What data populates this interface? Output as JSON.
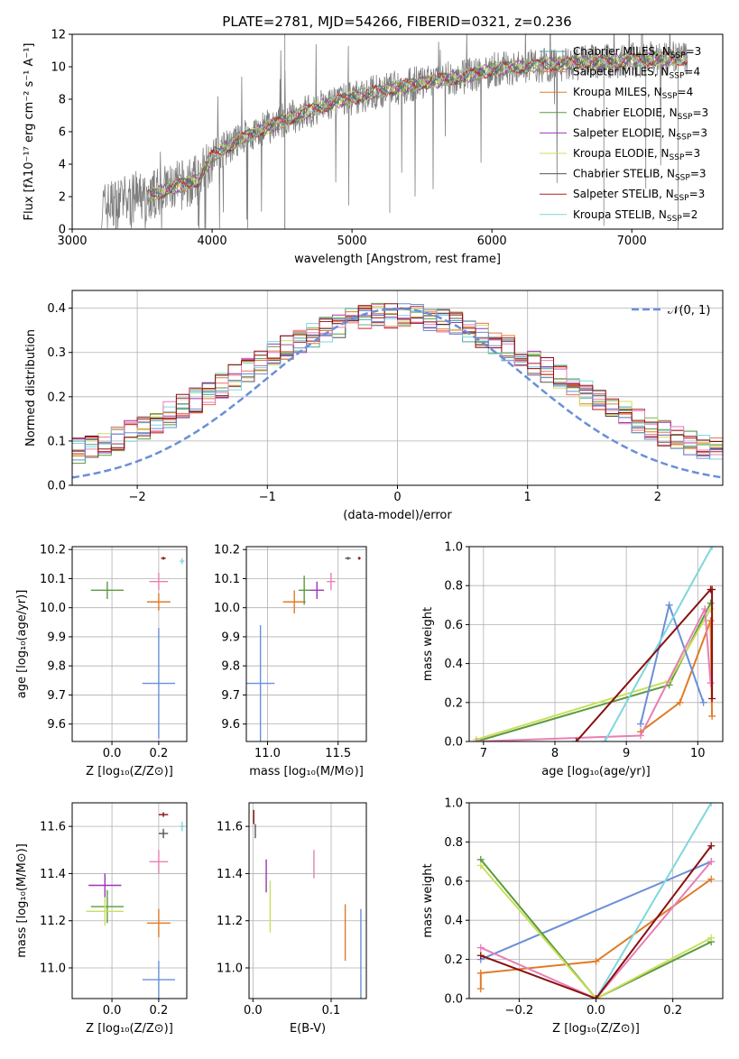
{
  "colors": {
    "chabrier_miles": "#4aa3a0",
    "salpeter_miles": "#e8735a",
    "kroupa_miles": "#e07b26",
    "chabrier_elodie": "#5a9a40",
    "salpeter_elodie": "#9b36b7",
    "kroupa_elodie": "#c9e05a",
    "chabrier_stelib": "#555555",
    "salpeter_stelib": "#b02020",
    "kroupa_stelib": "#7fd6de",
    "pink": "#e77fb5",
    "blue": "#6a8fd8",
    "darkred": "#8b0f0f",
    "spectrum": "#7f7f7f",
    "normal": "#6a8fd8"
  },
  "chart_data": [
    {
      "id": "spectrum",
      "type": "line",
      "title": "PLATE=2781, MJD=54266, FIBERID=0321, z=0.236",
      "xlabel": "wavelength [Angstrom, rest frame]",
      "ylabel": "Flux [fλ10⁻¹⁷ erg cm⁻² s⁻¹ A⁻¹]",
      "xlim": [
        3000,
        7650
      ],
      "ylim": [
        0,
        12
      ],
      "xticks": [
        3000,
        4000,
        5000,
        6000,
        7000
      ],
      "yticks": [
        0,
        2,
        4,
        6,
        8,
        10,
        12
      ],
      "grid": false,
      "legend_position": "top-right",
      "legend": [
        {
          "label": "Chabrier MILES, N",
          "sub": "SSP",
          "suffix": "=3"
        },
        {
          "label": "Salpeter MILES, N",
          "sub": "SSP",
          "suffix": "=4"
        },
        {
          "label": "Kroupa MILES, N",
          "sub": "SSP",
          "suffix": "=4"
        },
        {
          "label": "Chabrier ELODIE, N",
          "sub": "SSP",
          "suffix": "=3"
        },
        {
          "label": "Salpeter ELODIE, N",
          "sub": "SSP",
          "suffix": "=3"
        },
        {
          "label": "Kroupa ELODIE, N",
          "sub": "SSP",
          "suffix": "=3"
        },
        {
          "label": "Chabrier STELIB, N",
          "sub": "SSP",
          "suffix": "=3"
        },
        {
          "label": "Salpeter STELIB, N",
          "sub": "SSP",
          "suffix": "=3"
        },
        {
          "label": "Kroupa STELIB, N",
          "sub": "SSP",
          "suffix": "=2"
        }
      ],
      "continuum": [
        [
          3200,
          1.3
        ],
        [
          3300,
          1.6
        ],
        [
          3500,
          1.9
        ],
        [
          3700,
          2.5
        ],
        [
          3900,
          3.0
        ],
        [
          4000,
          4.5
        ],
        [
          4200,
          5.5
        ],
        [
          4400,
          6.3
        ],
        [
          4600,
          7.0
        ],
        [
          4800,
          7.6
        ],
        [
          5000,
          8.1
        ],
        [
          5200,
          8.5
        ],
        [
          5500,
          9.0
        ],
        [
          5800,
          9.4
        ],
        [
          6000,
          9.8
        ],
        [
          6200,
          10.0
        ],
        [
          6500,
          10.2
        ],
        [
          6800,
          10.3
        ],
        [
          7000,
          10.4
        ],
        [
          7200,
          10.5
        ],
        [
          7400,
          10.5
        ]
      ]
    },
    {
      "id": "residuals",
      "type": "histogram",
      "xlabel": "(data-model)/error",
      "ylabel": "Normed distribution",
      "xlim": [
        -2.5,
        2.5
      ],
      "ylim": [
        0,
        0.44
      ],
      "xticks": [
        -2,
        -1,
        0,
        1,
        2
      ],
      "yticks": [
        0.0,
        0.1,
        0.2,
        0.3,
        0.4
      ],
      "grid": true,
      "legend_position": "top-right",
      "legend": [
        {
          "label": "𝒩(0, 1)"
        }
      ]
    },
    {
      "id": "age_vs_Z",
      "type": "errorbar",
      "xlabel": "Z [log₁₀(Z/Z⊙)]",
      "ylabel": "age  [log₁₀(age/yr)]",
      "xlim": [
        -0.17,
        0.32
      ],
      "ylim": [
        9.54,
        10.21
      ],
      "xticks": [
        0.0,
        0.2
      ],
      "yticks": [
        9.6,
        9.7,
        9.8,
        9.9,
        10.0,
        10.1,
        10.2
      ],
      "grid": true,
      "points": [
        {
          "x": 0.2,
          "y": 9.74,
          "xerr": 0.07,
          "yerr": 0.19,
          "c": "blue"
        },
        {
          "x": 0.2,
          "y": 10.02,
          "xerr": 0.05,
          "yerr": 0.03,
          "c": "kroupa_miles"
        },
        {
          "x": -0.02,
          "y": 10.06,
          "xerr": 0.07,
          "yerr": 0.03,
          "c": "chabrier_elodie"
        },
        {
          "x": 0.2,
          "y": 10.09,
          "xerr": 0.04,
          "yerr": 0.03,
          "c": "pink"
        },
        {
          "x": 0.22,
          "y": 10.17,
          "xerr": 0.01,
          "yerr": 0.005,
          "c": "darkred"
        },
        {
          "x": 0.3,
          "y": 10.16,
          "xerr": 0.01,
          "yerr": 0.01,
          "c": "kroupa_stelib"
        }
      ]
    },
    {
      "id": "age_vs_mass",
      "type": "errorbar",
      "xlabel": "mass [log₁₀(M/M⊙)]",
      "ylabel": "",
      "xlim": [
        10.85,
        11.7
      ],
      "ylim": [
        9.54,
        10.21
      ],
      "xticks": [
        11.0,
        11.5
      ],
      "yticks": [
        9.6,
        9.7,
        9.8,
        9.9,
        10.0,
        10.1,
        10.2
      ],
      "grid": true,
      "points": [
        {
          "x": 10.95,
          "y": 9.74,
          "xerr": 0.1,
          "yerr": 0.2,
          "c": "blue"
        },
        {
          "x": 11.19,
          "y": 10.02,
          "xerr": 0.08,
          "yerr": 0.04,
          "c": "kroupa_miles"
        },
        {
          "x": 11.26,
          "y": 10.06,
          "xerr": 0.04,
          "yerr": 0.05,
          "c": "chabrier_elodie"
        },
        {
          "x": 11.35,
          "y": 10.06,
          "xerr": 0.05,
          "yerr": 0.03,
          "c": "salpeter_elodie"
        },
        {
          "x": 11.45,
          "y": 10.09,
          "xerr": 0.03,
          "yerr": 0.03,
          "c": "pink"
        },
        {
          "x": 11.57,
          "y": 10.17,
          "xerr": 0.02,
          "yerr": 0.005,
          "c": "chabrier_stelib"
        },
        {
          "x": 11.65,
          "y": 10.17,
          "xerr": 0.01,
          "yerr": 0.005,
          "c": "darkred"
        }
      ]
    },
    {
      "id": "weight_vs_age",
      "type": "line",
      "xlabel": "age  [log₁₀(age/yr)]",
      "ylabel": "mass weight",
      "xlim": [
        6.8,
        10.35
      ],
      "ylim": [
        0,
        1
      ],
      "xticks": [
        7,
        8,
        9,
        10
      ],
      "yticks": [
        0.0,
        0.2,
        0.4,
        0.6,
        0.8,
        1.0
      ],
      "grid": true,
      "series": [
        {
          "c": "chabrier_elodie",
          "x": [
            6.9,
            9.6,
            10.18
          ],
          "y": [
            0.0,
            0.29,
            0.71
          ]
        },
        {
          "c": "kroupa_elodie",
          "x": [
            6.9,
            9.6,
            10.18
          ],
          "y": [
            0.01,
            0.31,
            0.68
          ]
        },
        {
          "c": "kroupa_miles",
          "x": [
            9.2,
            9.75,
            10.18,
            10.2
          ],
          "y": [
            0.05,
            0.2,
            0.62,
            0.13
          ]
        },
        {
          "c": "blue",
          "x": [
            9.2,
            9.6,
            10.08
          ],
          "y": [
            0.09,
            0.7,
            0.2
          ]
        },
        {
          "c": "pink",
          "x": [
            6.9,
            9.2,
            10.1,
            10.18
          ],
          "y": [
            0.0,
            0.03,
            0.68,
            0.3
          ]
        },
        {
          "c": "kroupa_stelib",
          "x": [
            8.7,
            10.2
          ],
          "y": [
            0.0,
            1.0
          ]
        },
        {
          "c": "darkred",
          "x": [
            8.3,
            10.18,
            10.2,
            10.2
          ],
          "y": [
            0.0,
            0.78,
            0.78,
            0.22
          ]
        }
      ]
    },
    {
      "id": "mass_vs_Z",
      "type": "errorbar",
      "xlabel": "Z [log₁₀(Z/Z⊙)]",
      "ylabel": "mass [log₁₀(M/M⊙)]",
      "xlim": [
        -0.17,
        0.32
      ],
      "ylim": [
        10.87,
        11.7
      ],
      "xticks": [
        0.0,
        0.2
      ],
      "yticks": [
        11.0,
        11.2,
        11.4,
        11.6
      ],
      "grid": true,
      "points": [
        {
          "x": 0.2,
          "y": 10.95,
          "xerr": 0.07,
          "yerr": 0.08,
          "c": "blue"
        },
        {
          "x": 0.2,
          "y": 11.19,
          "xerr": 0.05,
          "yerr": 0.06,
          "c": "kroupa_miles"
        },
        {
          "x": -0.02,
          "y": 11.26,
          "xerr": 0.07,
          "yerr": 0.07,
          "c": "chabrier_elodie"
        },
        {
          "x": -0.03,
          "y": 11.24,
          "xerr": 0.08,
          "yerr": 0.06,
          "c": "kroupa_elodie"
        },
        {
          "x": -0.03,
          "y": 11.35,
          "xerr": 0.07,
          "yerr": 0.05,
          "c": "salpeter_elodie"
        },
        {
          "x": 0.2,
          "y": 11.45,
          "xerr": 0.04,
          "yerr": 0.05,
          "c": "pink"
        },
        {
          "x": 0.22,
          "y": 11.57,
          "xerr": 0.02,
          "yerr": 0.02,
          "c": "chabrier_stelib"
        },
        {
          "x": 0.22,
          "y": 11.65,
          "xerr": 0.02,
          "yerr": 0.01,
          "c": "darkred"
        },
        {
          "x": 0.3,
          "y": 11.6,
          "xerr": 0.01,
          "yerr": 0.02,
          "c": "kroupa_stelib"
        }
      ]
    },
    {
      "id": "mass_vs_ebv",
      "type": "errorbar",
      "xlabel": "E(B-V)",
      "ylabel": "",
      "xlim": [
        -0.005,
        0.145
      ],
      "ylim": [
        10.87,
        11.7
      ],
      "xticks": [
        0.0,
        0.1
      ],
      "yticks": [
        11.0,
        11.2,
        11.4,
        11.6
      ],
      "grid": true,
      "points": [
        {
          "x": 0.138,
          "y": 11.06,
          "xerr": 0.0,
          "yerr": 0.19,
          "c": "blue"
        },
        {
          "x": 0.118,
          "y": 11.15,
          "xerr": 0.0,
          "yerr": 0.12,
          "c": "kroupa_miles"
        },
        {
          "x": 0.022,
          "y": 11.26,
          "xerr": 0.0,
          "yerr": 0.11,
          "c": "kroupa_elodie"
        },
        {
          "x": 0.017,
          "y": 11.39,
          "xerr": 0.0,
          "yerr": 0.07,
          "c": "salpeter_elodie"
        },
        {
          "x": 0.078,
          "y": 11.44,
          "xerr": 0.0,
          "yerr": 0.06,
          "c": "pink"
        },
        {
          "x": 0.003,
          "y": 11.58,
          "xerr": 0.0,
          "yerr": 0.03,
          "c": "chabrier_stelib"
        },
        {
          "x": 0.001,
          "y": 11.64,
          "xerr": 0.0,
          "yerr": 0.03,
          "c": "darkred"
        }
      ]
    },
    {
      "id": "weight_vs_Z",
      "type": "line",
      "xlabel": "Z [log₁₀(Z/Z⊙)]",
      "ylabel": "mass weight",
      "xlim": [
        -0.33,
        0.33
      ],
      "ylim": [
        0,
        1
      ],
      "xticks": [
        -0.2,
        0.0,
        0.2
      ],
      "yticks": [
        0.0,
        0.2,
        0.4,
        0.6,
        0.8,
        1.0
      ],
      "grid": true,
      "series": [
        {
          "c": "blue",
          "x": [
            -0.3,
            0.3
          ],
          "y": [
            0.2,
            0.7
          ]
        },
        {
          "c": "kroupa_miles",
          "x": [
            -0.3,
            -0.3,
            0.0,
            0.3
          ],
          "y": [
            0.05,
            0.13,
            0.19,
            0.61
          ]
        },
        {
          "c": "chabrier_elodie",
          "x": [
            -0.3,
            0.0,
            0.3
          ],
          "y": [
            0.71,
            0.0,
            0.29
          ]
        },
        {
          "c": "kroupa_elodie",
          "x": [
            -0.3,
            0.0,
            0.3
          ],
          "y": [
            0.68,
            0.0,
            0.31
          ]
        },
        {
          "c": "pink",
          "x": [
            -0.3,
            0.0,
            0.3
          ],
          "y": [
            0.26,
            0.0,
            0.7
          ]
        },
        {
          "c": "kroupa_stelib",
          "x": [
            0.0,
            0.3
          ],
          "y": [
            0.0,
            1.0
          ]
        },
        {
          "c": "darkred",
          "x": [
            -0.3,
            0.0,
            0.3
          ],
          "y": [
            0.22,
            0.0,
            0.78
          ]
        }
      ]
    }
  ]
}
